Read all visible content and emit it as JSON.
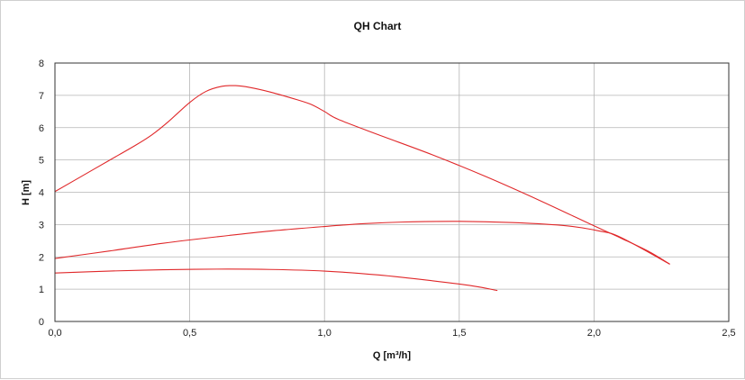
{
  "chart_data": {
    "type": "line",
    "title": "QH Chart",
    "xlabel": "Q [m³/h]",
    "ylabel": "H [m]",
    "xlim": [
      0,
      2.5
    ],
    "ylim": [
      0,
      8
    ],
    "xticks": [
      0,
      0.5,
      1.0,
      1.5,
      2.0,
      2.5
    ],
    "xtick_labels": [
      "0,0",
      "0,5",
      "1,0",
      "1,5",
      "2,0",
      "2,5"
    ],
    "yticks": [
      0,
      1,
      2,
      3,
      4,
      5,
      6,
      7,
      8
    ],
    "ytick_labels": [
      "0",
      "1",
      "2",
      "3",
      "4",
      "5",
      "6",
      "7",
      "8"
    ],
    "grid": true,
    "line_color": "#e0282a",
    "series": [
      {
        "x": [
          0.0,
          0.1,
          0.2,
          0.3,
          0.36,
          0.42,
          0.5,
          0.56,
          0.62,
          0.67,
          0.72,
          0.8,
          0.9,
          0.95,
          1.0,
          1.05,
          1.2,
          1.4,
          1.6,
          1.8,
          2.0,
          2.1,
          2.2,
          2.28
        ],
        "y": [
          4.02,
          4.5,
          4.98,
          5.46,
          5.78,
          6.18,
          6.78,
          7.12,
          7.28,
          7.3,
          7.25,
          7.1,
          6.86,
          6.72,
          6.5,
          6.26,
          5.78,
          5.16,
          4.48,
          3.74,
          2.96,
          2.58,
          2.18,
          1.78
        ]
      },
      {
        "x": [
          0.0,
          0.2,
          0.4,
          0.6,
          0.8,
          1.0,
          1.15,
          1.3,
          1.5,
          1.7,
          1.9,
          2.02,
          2.1,
          2.28
        ],
        "y": [
          1.95,
          2.18,
          2.42,
          2.62,
          2.8,
          2.94,
          3.03,
          3.08,
          3.1,
          3.06,
          2.96,
          2.8,
          2.6,
          1.78
        ]
      },
      {
        "x": [
          0.0,
          0.2,
          0.4,
          0.6,
          0.8,
          1.0,
          1.2,
          1.4,
          1.55,
          1.64
        ],
        "y": [
          1.5,
          1.56,
          1.6,
          1.62,
          1.61,
          1.56,
          1.44,
          1.26,
          1.1,
          0.96
        ]
      }
    ]
  }
}
